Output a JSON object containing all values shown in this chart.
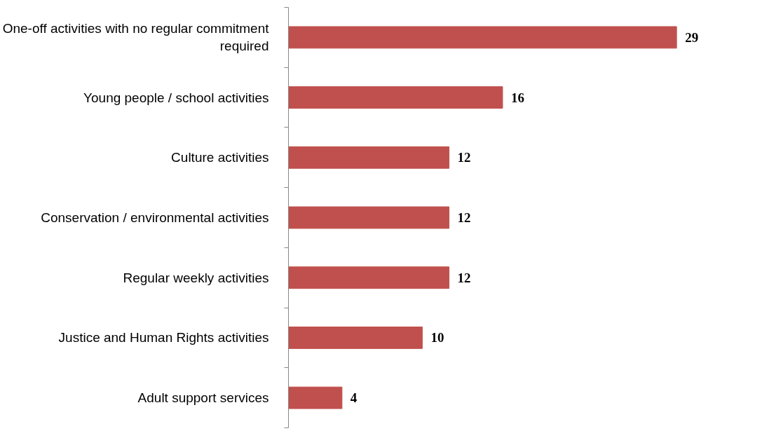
{
  "chart_data": {
    "type": "bar",
    "orientation": "horizontal",
    "categories": [
      "One-off activities with no regular commitment required",
      "Young people / school activities",
      "Culture activities",
      "Conservation / environmental activities",
      "Regular weekly activities",
      "Justice and Human Rights activities",
      "Adult support services"
    ],
    "values": [
      29,
      16,
      12,
      12,
      12,
      10,
      4
    ],
    "color": "#c0504d",
    "data_labels": true,
    "grid": false,
    "tick_labels": "y"
  }
}
